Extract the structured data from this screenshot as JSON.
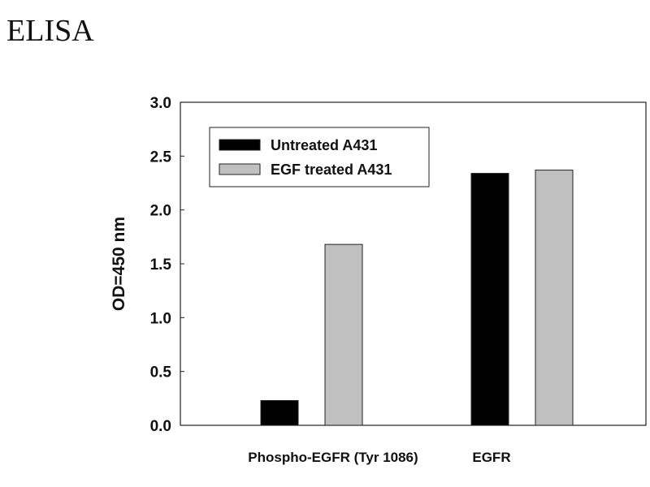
{
  "title": "ELISA",
  "chart_data": {
    "type": "bar",
    "title": "ELISA",
    "xlabel": "",
    "ylabel": "OD=450 nm",
    "ylim": [
      0,
      3.0
    ],
    "yticks": [
      "0.0",
      "0.5",
      "1.0",
      "1.5",
      "2.0",
      "2.5",
      "3.0"
    ],
    "categories": [
      "Phospho-EGFR (Tyr 1086)",
      "EGFR"
    ],
    "series": [
      {
        "name": "Untreated A431",
        "color": "#000000",
        "values": [
          0.23,
          2.34
        ]
      },
      {
        "name": "EGF treated A431",
        "color": "#c0c0c0",
        "values": [
          1.68,
          2.37
        ]
      }
    ],
    "legend_position": "top-left",
    "grid": false
  }
}
